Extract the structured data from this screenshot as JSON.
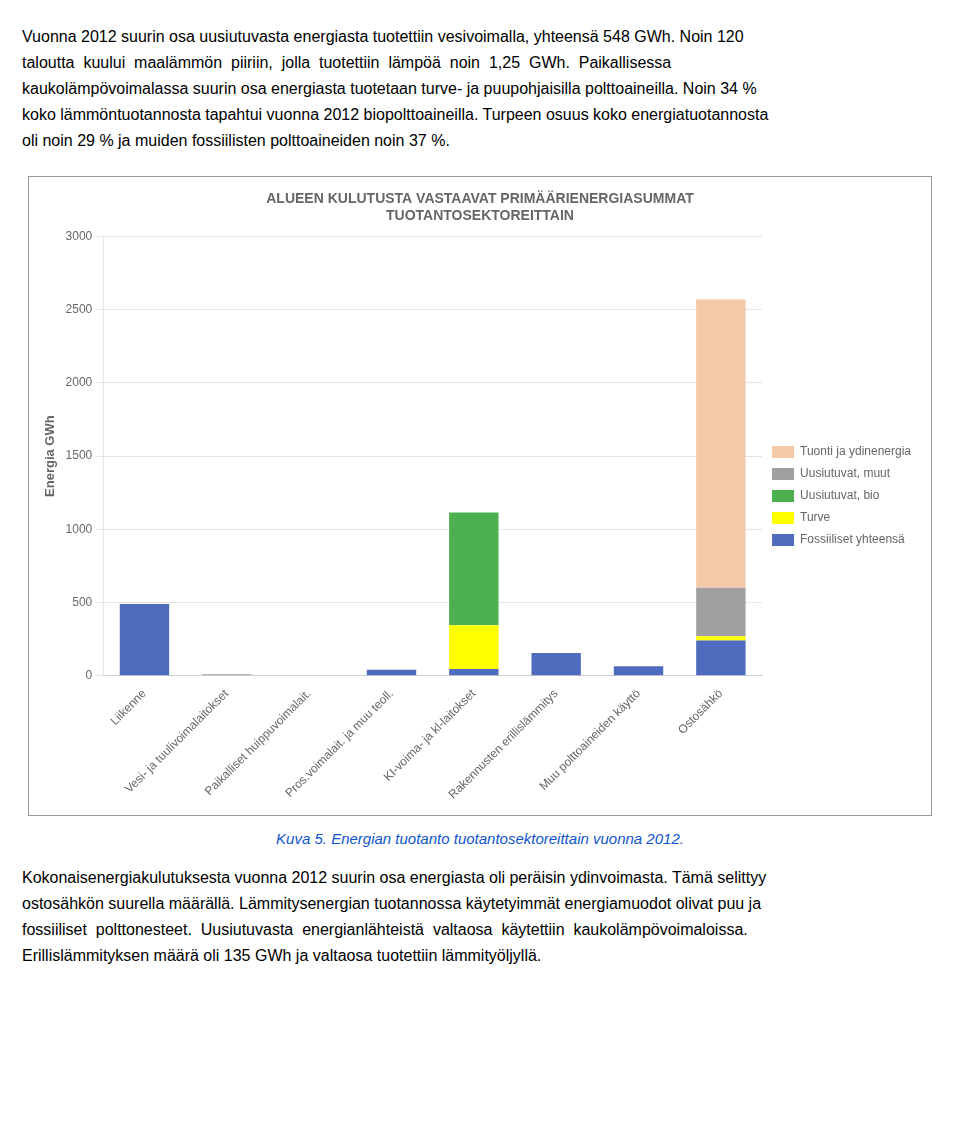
{
  "text_above": [
    "Vuonna 2012 suurin osa uusiutuvasta energiasta tuotettiin vesivoimalla, yhteensä 548 GWh. Noin 120",
    "taloutta  kuului  maalämmön  piiriin,  jolla  tuotettiin  lämpöä  noin  1,25  GWh.  Paikallisessa",
    "kaukolämpövoimalassa suurin osa energiasta tuotetaan turve- ja puupohjaisilla polttoaineilla. Noin 34 %",
    "koko lämmöntuotannosta tapahtui vuonna 2012 biopolttoaineilla. Turpeen osuus koko energiatuotannosta",
    "oli noin 29 % ja muiden fossiilisten polttoaineiden noin 37 %."
  ],
  "chart_data": {
    "type": "bar",
    "stacked": true,
    "title": [
      "ALUEEN KULUTUSTA VASTAAVAT PRIMÄÄRIENERGIASUMMAT",
      "TUOTANTOSEKTOREITTAIN"
    ],
    "ylabel": "Energia GWh",
    "categories": [
      "Liikenne",
      "Vesi- ja tuulivoimalaitokset",
      "Paikalliset huippuvoimalait.",
      "Pros.voimalait. ja muu teoll.",
      "KI-voima- ja kl-laitokset",
      "Rakennusten erillislämmitys",
      "Muu polttoaineiden käyttö",
      "Ostosähkö"
    ],
    "series": [
      {
        "name": "Fossiiliset yhteensä",
        "color": "#4f6bbd",
        "values": [
          490,
          0,
          0,
          40,
          45,
          155,
          65,
          240
        ]
      },
      {
        "name": "Turve",
        "color": "#ffff00",
        "values": [
          0,
          0,
          0,
          0,
          300,
          0,
          0,
          30
        ]
      },
      {
        "name": "Uusiutuvat, bio",
        "color": "#4caf50",
        "values": [
          0,
          0,
          0,
          0,
          770,
          0,
          0,
          0
        ]
      },
      {
        "name": "Uusiutuvat, muut",
        "color": "#a0a0a0",
        "values": [
          0,
          10,
          0,
          0,
          0,
          0,
          0,
          330
        ]
      },
      {
        "name": "Tuonti ja ydinenergia",
        "color": "#f4c9a8",
        "values": [
          0,
          0,
          0,
          0,
          0,
          0,
          0,
          1970
        ]
      }
    ],
    "ylim": [
      0,
      3000
    ],
    "yticks": [
      0,
      500,
      1000,
      1500,
      2000,
      2500,
      3000
    ],
    "grid": true,
    "legend": "right"
  },
  "caption": "Kuva 5. Energian tuotanto tuotantosektoreittain vuonna 2012.",
  "text_below": [
    "Kokonaisenergiakulutuksesta vuonna 2012 suurin osa energiasta oli peräisin ydinvoimasta. Tämä selittyy",
    "ostosähkön suurella määrällä. Lämmitysenergian tuotannossa käytetyimmät energiamuodot olivat puu ja",
    "fossiiliset  polttonesteet.  Uusiutuvasta  energianlähteistä  valtaosa  käytettiin  kaukolämpövoimaloissa.",
    "Erillislämmityksen määrä oli 135 GWh ja valtaosa tuotettiin lämmityöljyllä."
  ]
}
